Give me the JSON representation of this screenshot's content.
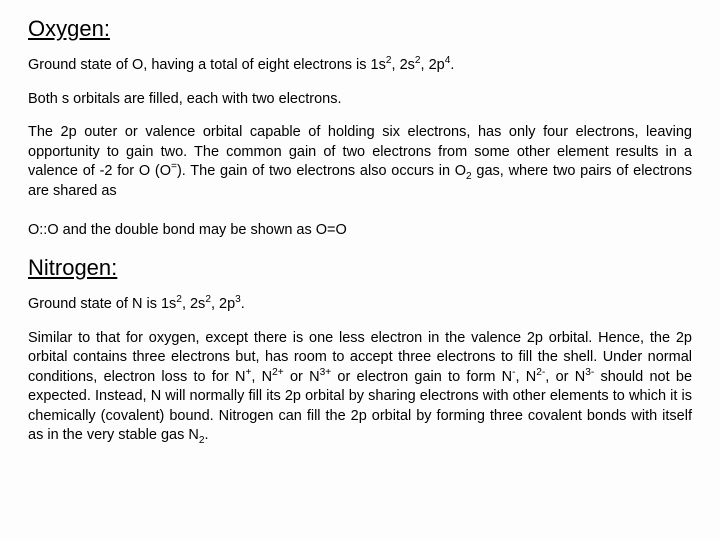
{
  "oxygen": {
    "heading": "Oxygen:",
    "line1_a": "Ground state of O, having a total of eight electrons is 1s",
    "line1_s1": "2",
    "line1_b": ", 2s",
    "line1_s2": "2",
    "line1_c": ", 2p",
    "line1_s3": "4",
    "line1_d": ".",
    "line2": "Both s orbitals are filled, each with two electrons.",
    "line3_a": "The 2p outer or valence orbital capable of holding six electrons, has only four electrons, leaving opportunity to gain two.  The common gain of two electrons from some other element results in a valence of -2 for O (O",
    "line3_sup_eq": "=",
    "line3_b": ").  The gain of two electrons also occurs in O",
    "line3_sub2": "2",
    "line3_c": " gas, where two pairs of electrons are shared as",
    "line4": "O::O and the double bond may be shown as O=O"
  },
  "nitrogen": {
    "heading": "Nitrogen:",
    "line1_a": "Ground state of N is 1s",
    "line1_s1": "2",
    "line1_b": ", 2s",
    "line1_s2": "2",
    "line1_c": ", 2p",
    "line1_s3": "3",
    "line1_d": ".",
    "line2_a": "Similar to that for oxygen, except there is one less electron in the valence 2p orbital.  Hence, the 2p orbital contains three electrons but, has room to accept three electrons to fill the shell.  Under normal conditions, electron loss to for N",
    "line2_sup_p": "+",
    "line2_b": ", N",
    "line2_sup_2p": "2+",
    "line2_c": " or N",
    "line2_sup_3p": "3+",
    "line2_d": " or electron gain to form N",
    "line2_sup_m": "-",
    "line2_e": ", N",
    "line2_sup_2m": "2-",
    "line2_f": ", or N",
    "line2_sup_3m": "3-",
    "line2_g": " should not be expected.  Instead, N will normally fill its 2p orbital by sharing electrons with other elements to which it is chemically (covalent) bound.  Nitrogen can fill the 2p orbital by forming three covalent bonds with itself as in the very stable gas N",
    "line2_sub2": "2",
    "line2_h": "."
  }
}
